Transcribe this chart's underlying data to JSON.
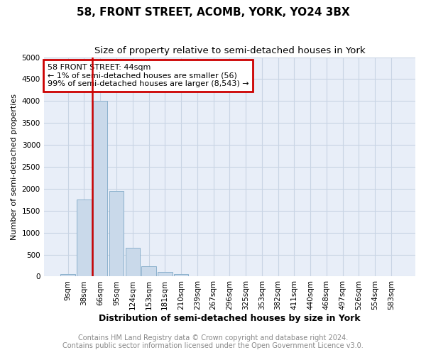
{
  "title": "58, FRONT STREET, ACOMB, YORK, YO24 3BX",
  "subtitle": "Size of property relative to semi-detached houses in York",
  "xlabel": "Distribution of semi-detached houses by size in York",
  "ylabel": "Number of semi-detached properties",
  "footnote1": "Contains HM Land Registry data © Crown copyright and database right 2024.",
  "footnote2": "Contains public sector information licensed under the Open Government Licence v3.0.",
  "bin_labels": [
    "9sqm",
    "38sqm",
    "66sqm",
    "95sqm",
    "124sqm",
    "153sqm",
    "181sqm",
    "210sqm",
    "239sqm",
    "267sqm",
    "296sqm",
    "325sqm",
    "353sqm",
    "382sqm",
    "411sqm",
    "440sqm",
    "468sqm",
    "497sqm",
    "526sqm",
    "554sqm",
    "583sqm"
  ],
  "bar_heights": [
    50,
    1750,
    4000,
    1950,
    650,
    240,
    100,
    50,
    15,
    8,
    4,
    3,
    2,
    2,
    1,
    1,
    1,
    1,
    0,
    0,
    0
  ],
  "bar_color": "#c9d9ea",
  "bar_edge_color": "#8ab0cc",
  "red_line_x": 1.5,
  "red_line_color": "#cc0000",
  "annotation_text_line1": "58 FRONT STREET: 44sqm",
  "annotation_text_line2": "← 1% of semi-detached houses are smaller (56)",
  "annotation_text_line3": "99% of semi-detached houses are larger (8,543) →",
  "annotation_box_color": "#cc0000",
  "ylim": [
    0,
    5000
  ],
  "yticks": [
    0,
    500,
    1000,
    1500,
    2000,
    2500,
    3000,
    3500,
    4000,
    4500,
    5000
  ],
  "grid_color": "#c8d4e4",
  "bg_color": "#e8eef8",
  "title_fontsize": 11,
  "subtitle_fontsize": 9.5,
  "axis_label_fontsize": 9,
  "tick_fontsize": 7.5,
  "ylabel_fontsize": 8,
  "footnote_fontsize": 7
}
